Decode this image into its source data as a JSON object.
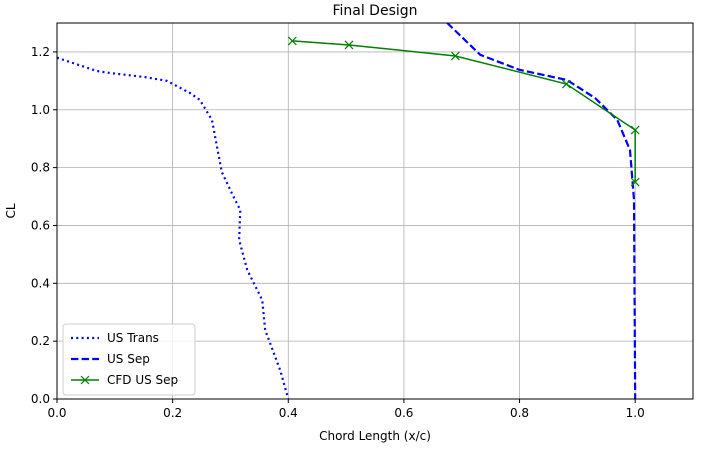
{
  "chart_data": {
    "type": "line",
    "title": "Final Design",
    "x_label": "Chord Length (x/c)",
    "y_label": "CL",
    "xlim": [
      0,
      1.1
    ],
    "ylim": [
      0,
      1.3
    ],
    "xticks": [
      {
        "value": 0,
        "label": "0.0"
      },
      0.2,
      0.4,
      0.6,
      0.8,
      {
        "value": 1,
        "label": "1.0"
      }
    ],
    "yticks": [
      {
        "value": 0,
        "label": "0.0"
      },
      0.2,
      0.4,
      0.6,
      0.8,
      {
        "value": 1,
        "label": "1.0"
      },
      1.2
    ],
    "grid": true,
    "legend": "lower left",
    "series": [
      {
        "name": "US Trans",
        "color": "#0000ff",
        "linestyle": "dotted",
        "x": [
          0,
          0.069,
          0.092,
          0.152,
          0.19,
          0.23,
          0.247,
          0.268,
          0.285,
          0.308,
          0.317,
          0.315,
          0.329,
          0.355,
          0.36,
          0.386,
          0.4
        ],
        "values": [
          1.18,
          1.134,
          1.127,
          1.113,
          1.1,
          1.058,
          1.034,
          0.965,
          0.785,
          0.688,
          0.654,
          0.55,
          0.446,
          0.342,
          0.239,
          0.1,
          0
        ]
      },
      {
        "name": "US Sep",
        "color": "#0000ff",
        "linestyle": "dashed",
        "x": [
          0.675,
          0.732,
          0.8,
          0.882,
          0.931,
          0.969,
          0.991,
          0.998,
          1.0
        ],
        "values": [
          1.3,
          1.19,
          1.138,
          1.103,
          1.04,
          0.965,
          0.861,
          0.688,
          0
        ]
      },
      {
        "name": "CFD US Sep",
        "color": "#008000",
        "linestyle": "solid",
        "marker": "x",
        "x": [
          0.407,
          0.505,
          0.689,
          0.881,
          1.0,
          1.0
        ],
        "values": [
          1.238,
          1.224,
          1.186,
          1.089,
          0.93,
          0.75
        ]
      }
    ]
  }
}
